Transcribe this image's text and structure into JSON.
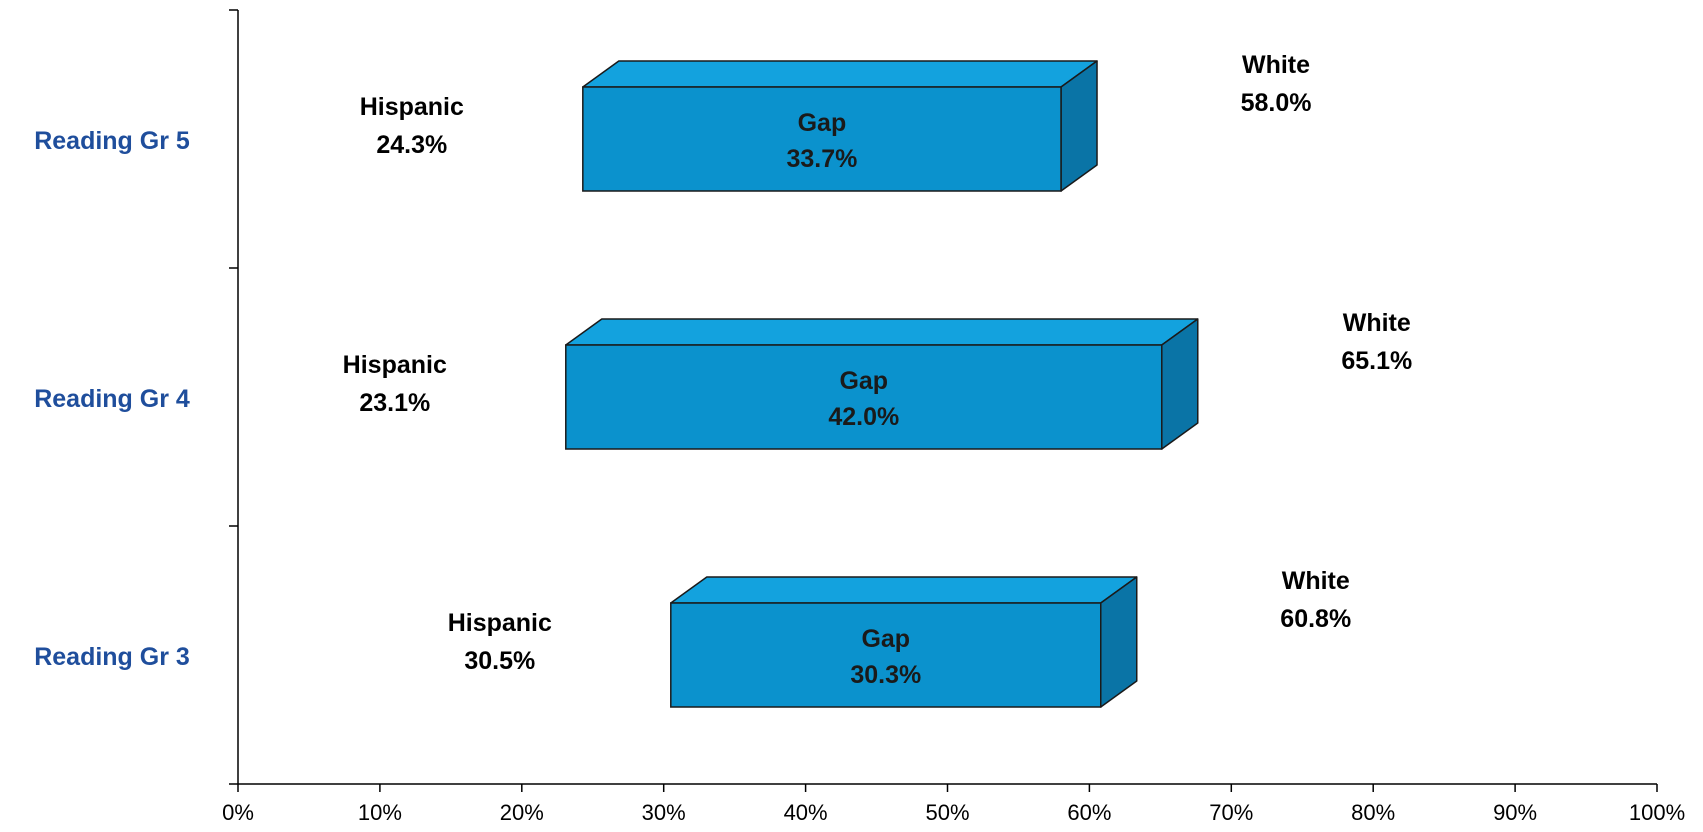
{
  "chart_data": {
    "type": "bar",
    "subtype": "floating-3d-horizontal-bar",
    "categories": [
      "Reading Gr 5",
      "Reading Gr 4",
      "Reading Gr 3"
    ],
    "series": [
      {
        "values": [
          24.3,
          23.1,
          30.5
        ],
        "value_labels": [
          "24.3%",
          "23.1%",
          "30.5%"
        ],
        "segment_label": "Hispanic"
      },
      {
        "values": [
          58.0,
          65.1,
          60.8
        ],
        "value_labels": [
          "58.0%",
          "65.1%",
          "60.8%"
        ],
        "segment_label": "White"
      },
      {
        "values": [
          33.7,
          42.0,
          30.3
        ],
        "value_labels": [
          "33.7%",
          "42.0%",
          "30.3%"
        ],
        "segment_label": "Gap"
      }
    ],
    "xlim": [
      0,
      100
    ],
    "xticks": [
      "0%",
      "10%",
      "20%",
      "30%",
      "40%",
      "50%",
      "60%",
      "70%",
      "80%",
      "90%",
      "100%"
    ],
    "grid": false,
    "colors": {
      "bar_front": "#0b92cd",
      "bar_top": "#13a2de",
      "bar_side": "#0a74a6",
      "bar_edge": "#1a1a1a",
      "category_text": "#1f4e9c",
      "text": "#000000"
    }
  }
}
